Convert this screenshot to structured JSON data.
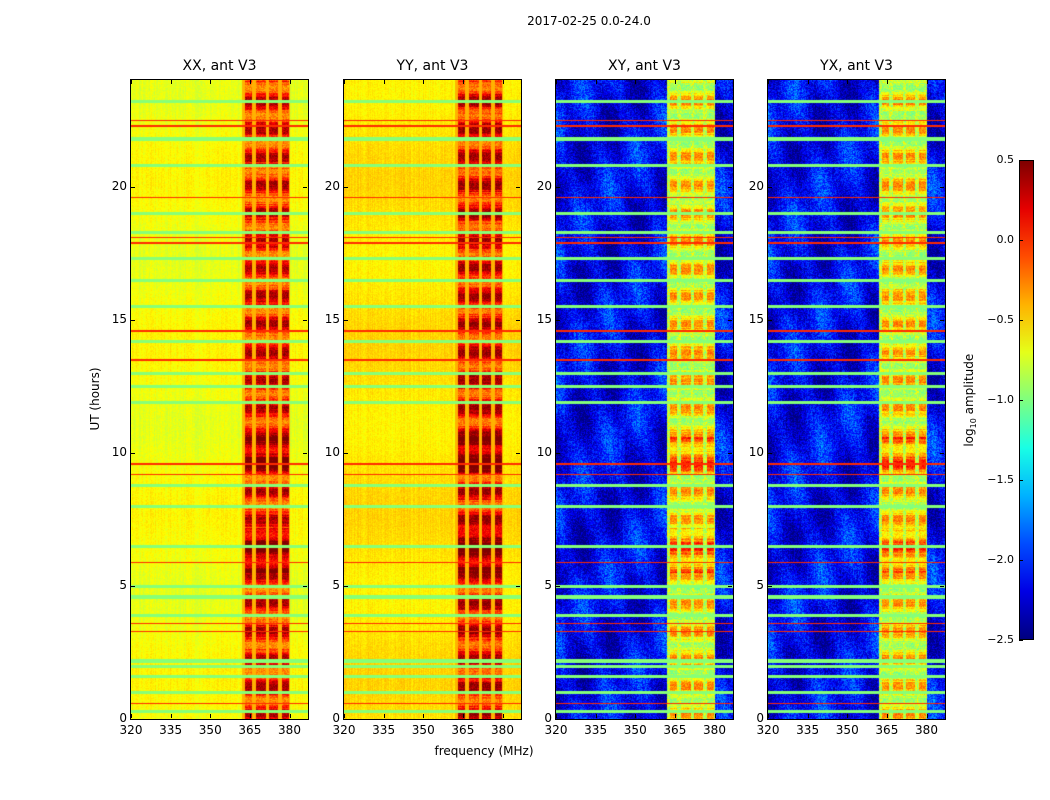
{
  "chart_data": {
    "type": "heatmap",
    "title": "2017-02-25 0.0-24.0",
    "xlabel": "frequency (MHz)",
    "ylabel": "UT (hours)",
    "xlim": [
      320,
      387
    ],
    "ylim": [
      0,
      24
    ],
    "xticks": [
      "320",
      "335",
      "350",
      "365",
      "380"
    ],
    "yticks": [
      "0",
      "5",
      "10",
      "15",
      "20"
    ],
    "colorbar": {
      "label_prefix": "log",
      "label_sub": "10",
      "label_suffix": " amplitude",
      "range": [
        -2.5,
        0.5
      ],
      "ticks": [
        "0.5",
        "0.0",
        "−0.5",
        "−1.0",
        "−1.5",
        "−2.0",
        "−2.5"
      ],
      "colormap": "jet"
    },
    "panels": [
      {
        "title": "XX, ant V3",
        "base_level": -0.65,
        "band_level": 0.05
      },
      {
        "title": "YY, ant V3",
        "base_level": -0.55,
        "band_level": 0.1
      },
      {
        "title": "XY, ant V3",
        "base_level": -2.15,
        "band_level": -0.6
      },
      {
        "title": "YX, ant V3",
        "base_level": -2.15,
        "band_level": -0.6
      }
    ],
    "strong_band_mhz": [
      362,
      380
    ],
    "flagged_hours": [
      0.3,
      1.0,
      1.6,
      2.0,
      2.2,
      3.9,
      4.6,
      5.0,
      6.5,
      8.0,
      8.8,
      11.9,
      12.5,
      13.0,
      14.2,
      15.5,
      16.5,
      17.3,
      18.3,
      19.0,
      20.8,
      21.8,
      23.2
    ],
    "bright_hours": [
      0.6,
      3.3,
      3.6,
      5.9,
      9.2,
      9.6,
      13.5,
      14.6,
      17.9,
      18.1,
      19.6,
      22.3,
      22.5
    ]
  }
}
